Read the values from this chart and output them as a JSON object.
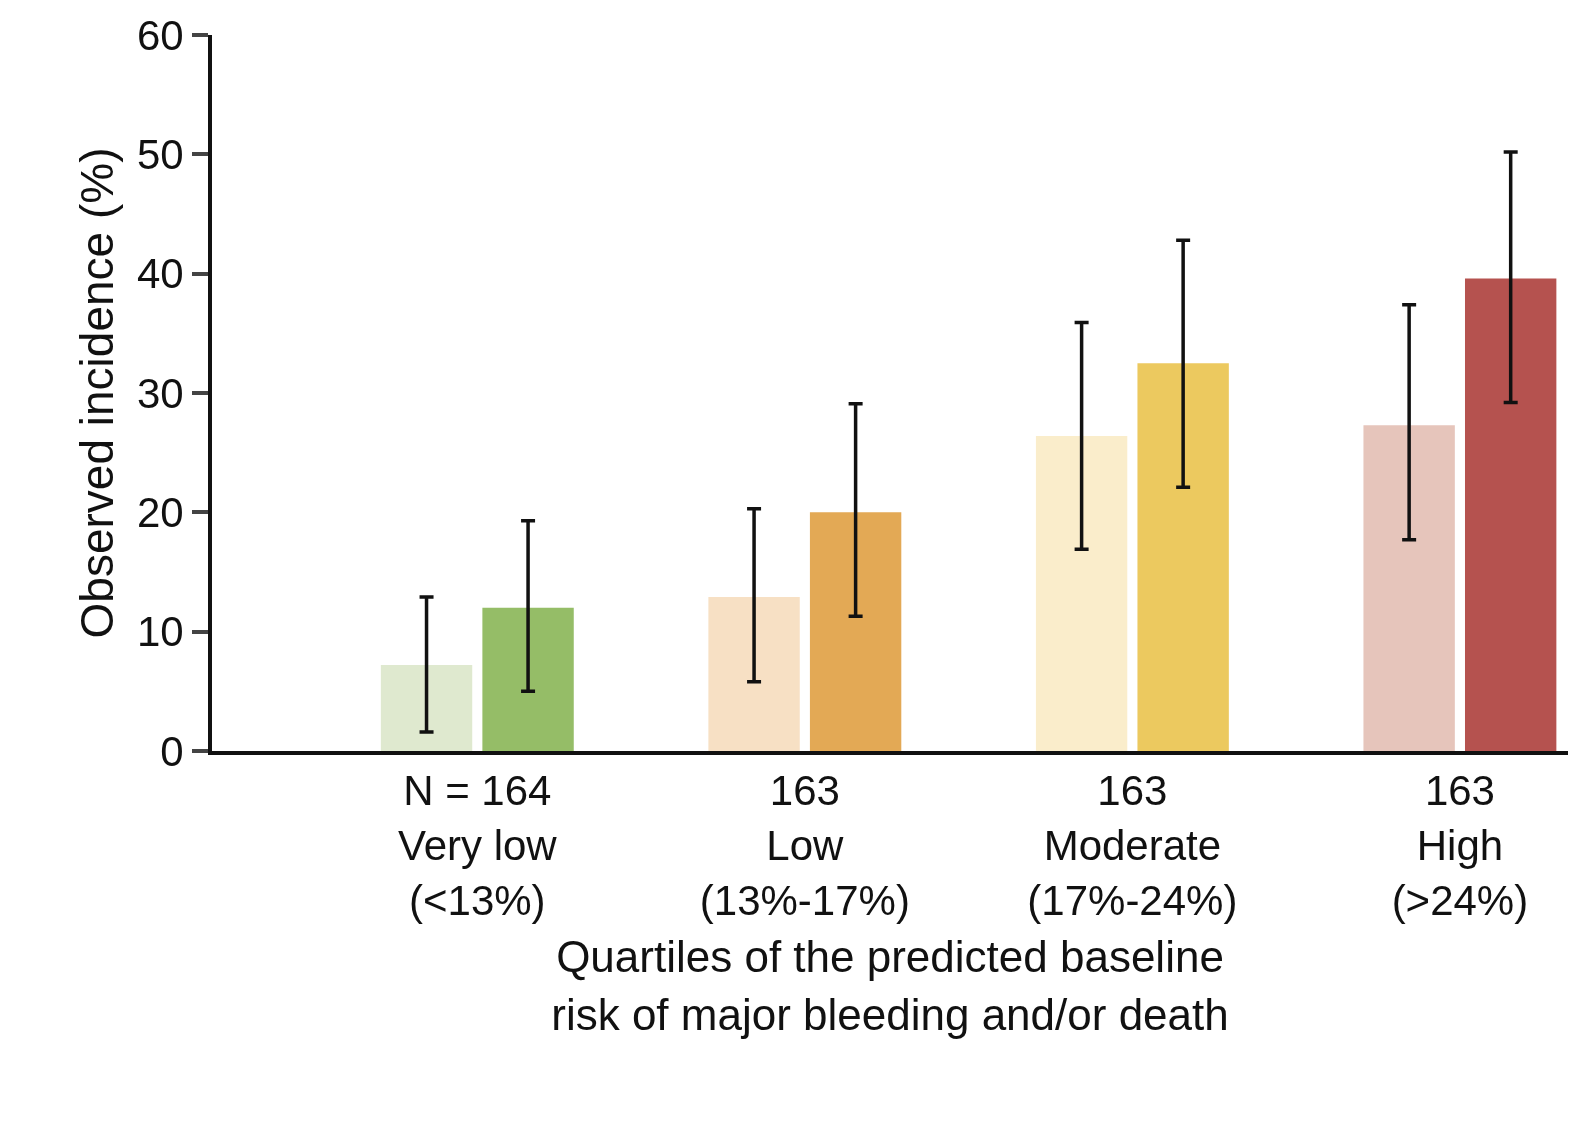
{
  "chart_data": {
    "type": "bar",
    "ylabel": "Observed incidence (%)",
    "xlabel": "Quartiles of the predicted baseline risk of major bleeding and/or death",
    "categories": [
      "N = 164\nVery low\n(<13%)",
      "163\nLow\n(13%-17%)",
      "163\nModerate\n(17%-24%)",
      "163\nHigh\n(>24%)"
    ],
    "series": [
      {
        "colors": [
          "#dfe9cf",
          "#f7e0c4",
          "#faedcb",
          "#e6c5bb"
        ],
        "values": [
          7.2,
          12.9,
          26.4,
          27.3
        ],
        "errors": [
          [
            1.6,
            12.9
          ],
          [
            5.8,
            20.3
          ],
          [
            16.9,
            35.9
          ],
          [
            17.7,
            37.4
          ]
        ]
      },
      {
        "colors": [
          "#95bd67",
          "#e3a955",
          "#ecc95f",
          "#b5524f"
        ],
        "values": [
          12.0,
          20.0,
          32.5,
          39.6
        ],
        "errors": [
          [
            5.0,
            19.3
          ],
          [
            11.3,
            29.1
          ],
          [
            22.1,
            42.8
          ],
          [
            29.2,
            50.2
          ]
        ]
      }
    ],
    "ylim": [
      0,
      60
    ],
    "yticks": [
      0,
      10,
      20,
      30,
      40,
      50,
      60
    ]
  }
}
